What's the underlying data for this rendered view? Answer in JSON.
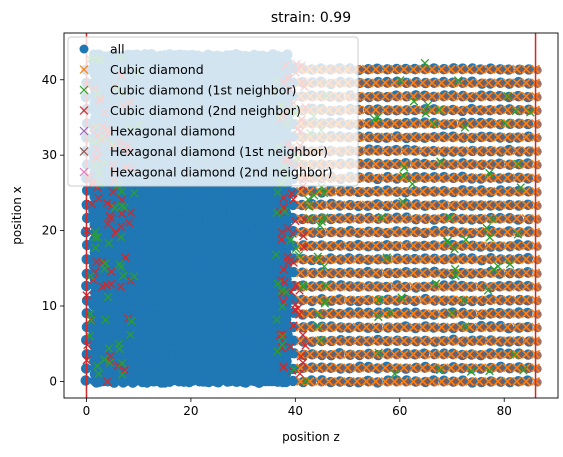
{
  "chart_data": {
    "type": "scatter",
    "title": "strain: 0.99",
    "xlabel": "position z",
    "ylabel": "position x",
    "xlim": [
      -4.3,
      90.3
    ],
    "ylim": [
      -2.2,
      46.2
    ],
    "xticks": [
      0,
      20,
      40,
      60,
      80
    ],
    "yticks": [
      0,
      10,
      20,
      30,
      40
    ],
    "vlines": [
      {
        "x": 0,
        "color": "#d62728"
      },
      {
        "x": 86,
        "color": "#d62728"
      }
    ],
    "legend": {
      "placement": "upper-left",
      "entries": [
        {
          "label": "all",
          "marker": "circle",
          "color": "#1f77b4"
        },
        {
          "label": "Cubic diamond",
          "marker": "x",
          "color": "#ff7f0e"
        },
        {
          "label": "Cubic diamond (1st neighbor)",
          "marker": "x",
          "color": "#2ca02c"
        },
        {
          "label": "Cubic diamond (2nd neighbor)",
          "marker": "x",
          "color": "#d62728"
        },
        {
          "label": "Hexagonal diamond",
          "marker": "x",
          "color": "#9467bd"
        },
        {
          "label": "Hexagonal diamond (1st neighbor)",
          "marker": "x",
          "color": "#8c564b"
        },
        {
          "label": "Hexagonal diamond (2nd neighbor)",
          "marker": "x",
          "color": "#e377c2"
        }
      ]
    },
    "series": [
      {
        "name": "all",
        "regions": [
          {
            "kind": "dense-fill",
            "x": [
              1.5,
              38.5
            ],
            "y": [
              0,
              43.5
            ],
            "color": "#1f77b4"
          },
          {
            "kind": "lattice",
            "x": [
              0,
              86
            ],
            "y": [
              0,
              43
            ],
            "dx": 1.8,
            "dy": 1.8,
            "color": "#1f77b4"
          }
        ]
      },
      {
        "name": "Cubic diamond",
        "regions": [
          {
            "kind": "lattice",
            "x": [
              41,
              86
            ],
            "y": [
              0,
              43
            ],
            "dx": 1.8,
            "dy": 1.8
          }
        ]
      },
      {
        "name": "Cubic diamond (1st neighbor)",
        "regions": [
          {
            "kind": "scattered",
            "x": [
              0,
              10
            ],
            "y": [
              0,
              43
            ]
          },
          {
            "kind": "scattered",
            "x": [
              36,
              46
            ],
            "y": [
              0,
              40
            ]
          },
          {
            "kind": "scattered",
            "x": [
              55,
              86
            ],
            "y": [
              0,
              43
            ]
          }
        ]
      },
      {
        "name": "Cubic diamond (2nd neighbor)",
        "regions": [
          {
            "kind": "scattered",
            "x": [
              0,
              9
            ],
            "y": [
              0,
              43
            ]
          },
          {
            "kind": "scattered",
            "x": [
              37,
              42
            ],
            "y": [
              0,
              43
            ]
          }
        ]
      },
      {
        "name": "Hexagonal diamond (1st neighbor)",
        "regions": [
          {
            "kind": "lattice",
            "x": [
              41,
              86
            ],
            "y": [
              0,
              43
            ]
          }
        ]
      }
    ]
  }
}
